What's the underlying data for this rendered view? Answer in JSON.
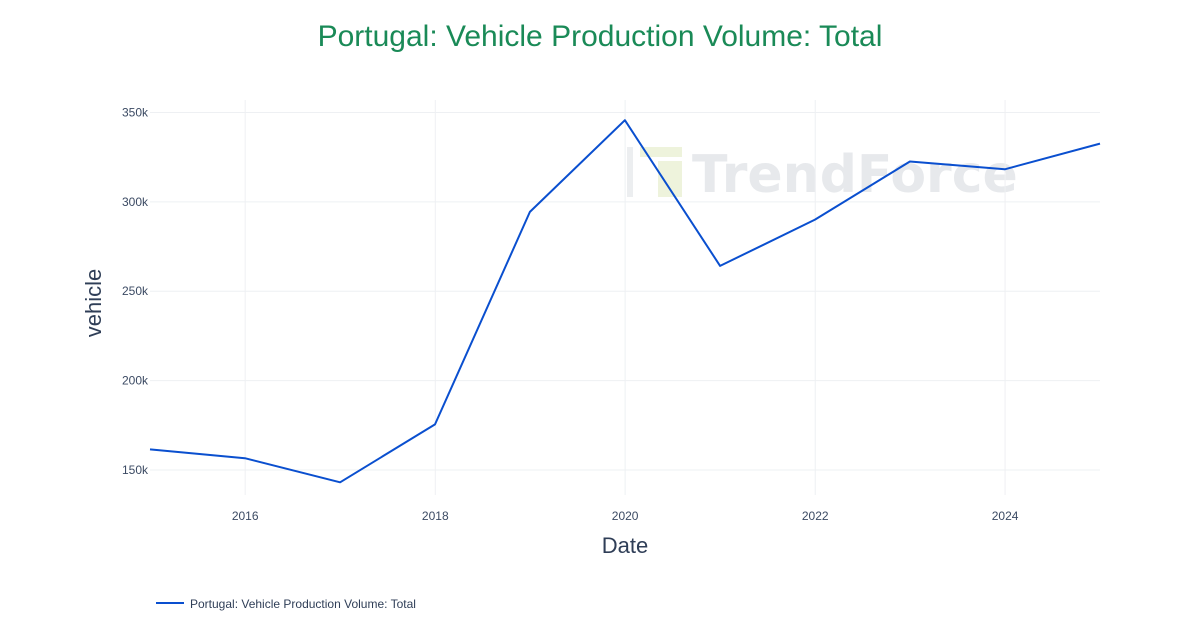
{
  "chart_data": {
    "type": "line",
    "title": "Portugal: Vehicle Production Volume: Total",
    "xlabel": "Date",
    "ylabel": "vehicle",
    "x_tick_labels": [
      "2016",
      "2018",
      "2020",
      "2022",
      "2024"
    ],
    "y_tick_labels": [
      "150k",
      "200k",
      "250k",
      "300k",
      "350k"
    ],
    "xlim": [
      "2014-12-31",
      "2024-12-31"
    ],
    "ylim": [
      136000,
      357000
    ],
    "grid": true,
    "legend_position": "bottom-left",
    "series": [
      {
        "name": "Portugal: Vehicle Production Volume: Total",
        "color": "#0a4fcf",
        "x": [
          "2014-12-31",
          "2015-12-31",
          "2016-12-31",
          "2017-12-31",
          "2018-12-31",
          "2019-12-31",
          "2020-12-31",
          "2021-12-31",
          "2022-12-31",
          "2023-12-31",
          "2024-12-31"
        ],
        "values": [
          161500,
          156600,
          143100,
          175500,
          294400,
          345700,
          264200,
          290100,
          322600,
          318200,
          332600
        ]
      }
    ]
  },
  "watermark": {
    "text": "TrendForce",
    "icon": "trendforce-logo-icon"
  }
}
